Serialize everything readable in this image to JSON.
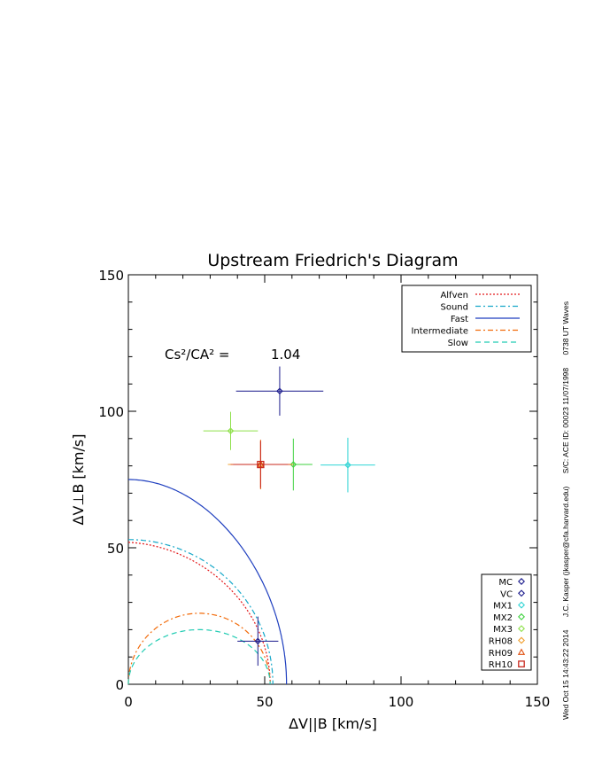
{
  "chart_data": {
    "type": "scatter",
    "title": "Upstream Friedrich's Diagram",
    "xlabel": "ΔV||B [km/s]",
    "ylabel": "ΔV⊥B [km/s]",
    "xlim": [
      0,
      150
    ],
    "ylim": [
      0,
      150
    ],
    "xticks": [
      "0",
      "50",
      "100",
      "150"
    ],
    "yticks": [
      "0",
      "50",
      "100",
      "150"
    ],
    "grid": false,
    "annotation": {
      "label": "Cs²/CA² =",
      "value": "1.04"
    },
    "curves": [
      {
        "name": "Alfven",
        "color": "#e31a1c",
        "style": "dotted",
        "radius": 52,
        "shape": "alfven"
      },
      {
        "name": "Sound",
        "color": "#17a8c9",
        "style": "dashdot",
        "radius": 53,
        "shape": "circle"
      },
      {
        "name": "Fast",
        "color": "#1f3fbf",
        "style": "solid",
        "radius": 75,
        "xmax": 58,
        "shape": "fast"
      },
      {
        "name": "Intermediate",
        "color": "#f26b0a",
        "style": "dashdot",
        "radius": 26,
        "xcenter": 26,
        "shape": "arch"
      },
      {
        "name": "Slow",
        "color": "#22ccb3",
        "style": "dashed",
        "radius": 20,
        "xcenter": 26,
        "shape": "arch"
      }
    ],
    "legend_placement": "top-right",
    "points": [
      {
        "name": "MC",
        "marker": "diamond",
        "color": "#1a1a8c",
        "x": 47.5,
        "y": 15.8,
        "xerr": 7.5,
        "yerr": 9
      },
      {
        "name": "VC",
        "marker": "diamond",
        "color": "#1a1a8c",
        "x": 55.5,
        "y": 107.4,
        "xerr": 16,
        "yerr": 9
      },
      {
        "name": "MX1",
        "marker": "diamond",
        "color": "#2fd4d4",
        "x": 80.5,
        "y": 80.3,
        "xerr": 10,
        "yerr": 10
      },
      {
        "name": "MX2",
        "marker": "diamond",
        "color": "#3fd23f",
        "x": 60.5,
        "y": 80.5,
        "xerr": 7,
        "yerr": 9.5
      },
      {
        "name": "MX3",
        "marker": "diamond",
        "color": "#8ee04a",
        "x": 37.5,
        "y": 92.8,
        "xerr": 10,
        "yerr": 7
      },
      {
        "name": "RH08",
        "marker": "diamond",
        "color": "#f0a030",
        "x": 48.5,
        "y": 80.5,
        "xerr": 12,
        "yerr": 9
      },
      {
        "name": "RH09",
        "marker": "triangle",
        "color": "#e05010",
        "x": 48.5,
        "y": 80.5,
        "xerr": 11,
        "yerr": 9
      },
      {
        "name": "RH10",
        "marker": "square",
        "color": "#c8281e",
        "x": 48.5,
        "y": 80.5,
        "xerr": 10,
        "yerr": 8.5
      }
    ]
  },
  "side_note": {
    "timestamp": "Wed Oct 15 14:43:22 2014",
    "author": "J.C. Kasper (jkasper@cfa.harvard.edu)",
    "spacecraft": "S/C: ACE ID: 00023 11/07/1998",
    "time": "0738 UT Waves"
  }
}
